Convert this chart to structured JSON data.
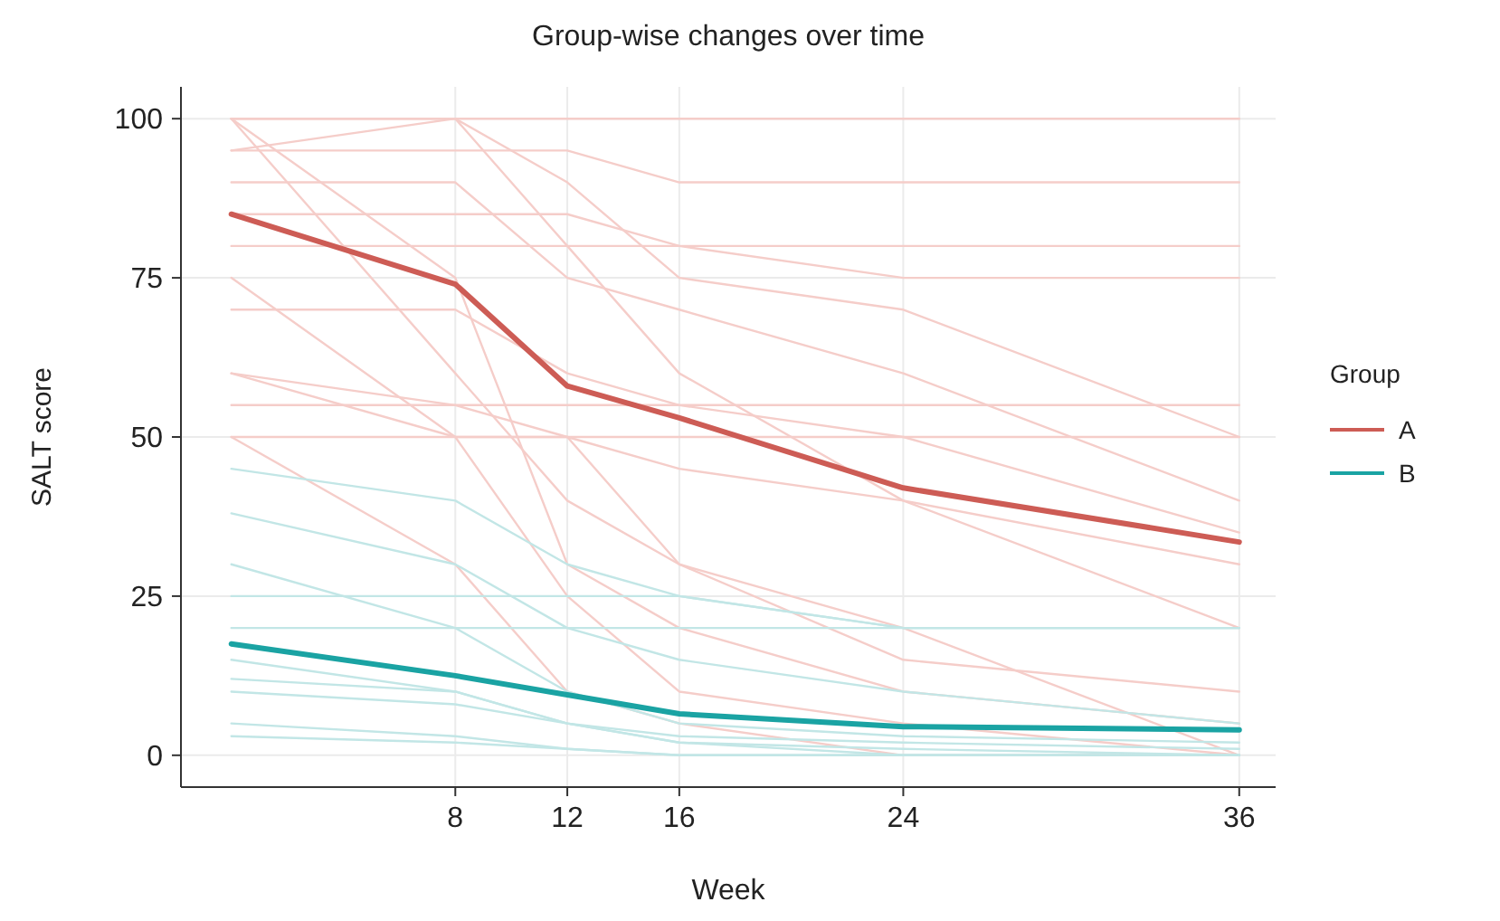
{
  "chart_data": {
    "type": "line",
    "title": "Group-wise changes over time",
    "xlabel": "Week",
    "ylabel": "SALT score",
    "legend_title": "Group",
    "legend": "right",
    "grid": true,
    "x": [
      0,
      8,
      12,
      16,
      24,
      36
    ],
    "xlim": [
      -1.8,
      37.3
    ],
    "xticks": [
      8,
      12,
      16,
      24,
      36
    ],
    "ylim": [
      -5,
      105
    ],
    "yticks": [
      0,
      25,
      50,
      75,
      100
    ],
    "series": [
      {
        "color": "#f5cdc9",
        "values": [
          100,
          100,
          100,
          100,
          100,
          100
        ]
      },
      {
        "color": "#f5cdc9",
        "values": [
          100,
          100,
          90,
          75,
          70,
          50
        ]
      },
      {
        "color": "#f5cdc9",
        "values": [
          95,
          100,
          80,
          60,
          40,
          20
        ]
      },
      {
        "color": "#f5cdc9",
        "values": [
          90,
          90,
          75,
          70,
          60,
          40
        ]
      },
      {
        "color": "#f5cdc9",
        "values": [
          85,
          85,
          85,
          80,
          75,
          75
        ]
      },
      {
        "color": "#f5cdc9",
        "values": [
          80,
          80,
          80,
          80,
          80,
          80
        ]
      },
      {
        "color": "#f5cdc9",
        "values": [
          75,
          50,
          50,
          30,
          20,
          0
        ]
      },
      {
        "color": "#f5cdc9",
        "values": [
          70,
          70,
          60,
          55,
          50,
          35
        ]
      },
      {
        "color": "#f5cdc9",
        "values": [
          60,
          50,
          25,
          10,
          5,
          0
        ]
      },
      {
        "color": "#f5cdc9",
        "values": [
          55,
          55,
          55,
          55,
          55,
          55
        ]
      },
      {
        "color": "#f5cdc9",
        "values": [
          50,
          50,
          50,
          50,
          50,
          50
        ]
      },
      {
        "color": "#f5cdc9",
        "values": [
          50,
          30,
          10,
          5,
          0,
          0
        ]
      },
      {
        "color": "#f5cdc9",
        "values": [
          100,
          75,
          30,
          20,
          10,
          5
        ]
      },
      {
        "color": "#f5cdc9",
        "values": [
          95,
          95,
          95,
          90,
          90,
          90
        ]
      },
      {
        "color": "#f5cdc9",
        "values": [
          100,
          60,
          40,
          30,
          15,
          10
        ]
      },
      {
        "color": "#f5cdc9",
        "values": [
          60,
          55,
          50,
          45,
          40,
          30
        ]
      },
      {
        "color": "#c2e6e6",
        "values": [
          45,
          40,
          30,
          25,
          20,
          20
        ]
      },
      {
        "color": "#c2e6e6",
        "values": [
          38,
          30,
          20,
          15,
          10,
          5
        ]
      },
      {
        "color": "#c2e6e6",
        "values": [
          25,
          25,
          25,
          25,
          20,
          20
        ]
      },
      {
        "color": "#c2e6e6",
        "values": [
          20,
          20,
          20,
          20,
          20,
          20
        ]
      },
      {
        "color": "#c2e6e6",
        "values": [
          15,
          10,
          5,
          2,
          0,
          0
        ]
      },
      {
        "color": "#c2e6e6",
        "values": [
          10,
          8,
          5,
          3,
          2,
          1
        ]
      },
      {
        "color": "#c2e6e6",
        "values": [
          5,
          3,
          1,
          0,
          0,
          0
        ]
      },
      {
        "color": "#c2e6e6",
        "values": [
          3,
          2,
          1,
          0,
          0,
          0
        ]
      },
      {
        "color": "#c2e6e6",
        "values": [
          30,
          20,
          10,
          5,
          3,
          2
        ]
      },
      {
        "color": "#c2e6e6",
        "values": [
          12,
          10,
          5,
          2,
          1,
          0
        ]
      },
      {
        "name": "A",
        "color": "#cd5c55",
        "values": [
          85,
          74,
          58,
          53,
          42,
          33.5
        ]
      },
      {
        "name": "B",
        "color": "#1aa3a3",
        "values": [
          17.5,
          12.5,
          9.5,
          6.5,
          4.5,
          4
        ]
      }
    ]
  }
}
